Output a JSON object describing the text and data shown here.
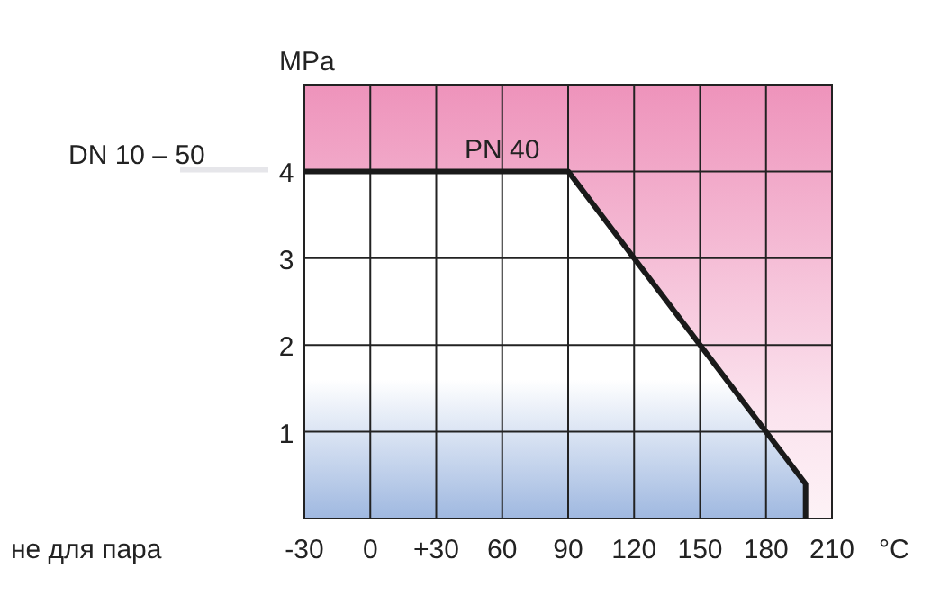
{
  "chart_data": {
    "type": "line",
    "xlabel": "°C",
    "ylabel": "MPa",
    "x": [
      -30,
      90,
      198,
      198
    ],
    "series": [
      {
        "color": "#1a1a1a",
        "values": [
          4,
          4,
          0.4,
          0
        ]
      }
    ],
    "xlim": [
      -30,
      210
    ],
    "ylim": [
      0,
      5
    ],
    "xticks": [
      -30,
      0,
      {
        "value": 30,
        "label": "+30"
      },
      60,
      90,
      120,
      150,
      180,
      210
    ],
    "yticks": [
      {
        "value": 0,
        "label": null
      },
      1,
      2,
      3,
      4,
      {
        "value": 5,
        "label": null
      }
    ],
    "grid": true,
    "marker": "none",
    "line_style": "solid",
    "annotations": [
      {
        "text": "PN 40",
        "x": 60,
        "y": 4
      },
      "DN 10 – 50",
      "не для пара"
    ]
  }
}
